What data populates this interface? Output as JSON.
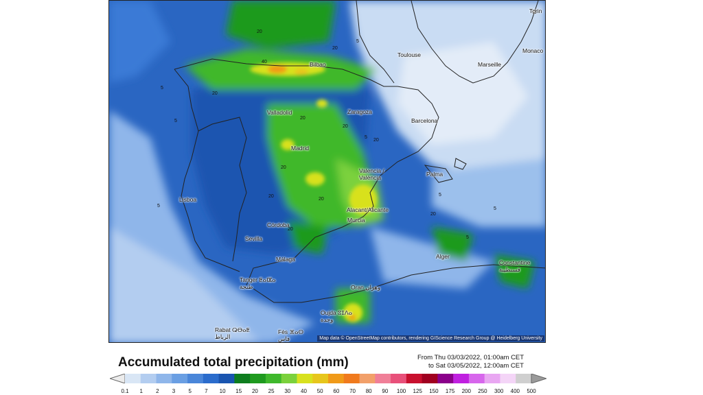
{
  "cities": {
    "torino": "Torin",
    "monaco": "Monaco",
    "toulouse": "Toulouse",
    "marseille": "Marseille",
    "bilbao": "Bilbao",
    "valladolid": "Valladolid",
    "zaragoza": "Zaragoza",
    "barcelona": "Barcelona",
    "madrid": "Madrid",
    "valencia": "Valencia /\nValència",
    "palma": "Palma",
    "lisboa": "Lisboa",
    "alacant": "Alacant/Alicante",
    "murcia": "Murcia",
    "cordoba": "Córdoba",
    "sevilla": "Sevilla",
    "malaga": "Málaga",
    "alger": "Alger",
    "constantine": "Constantine\nقسنطينة",
    "tanger": "Tanger ⵟⴰⵏⴵⴰ\nطنجة",
    "oran": "Oran وهران",
    "oujda": "Oujda ⵓⵊⴷⴰ\nوجدة",
    "rabat": "Rabat ⵕⴱⴰⵟ\nالرباط",
    "fes": "Fès ⴼⴰⵙ\nفاس"
  },
  "contour_labels": [
    "20",
    "40",
    "5",
    "20",
    "20",
    "20",
    "5",
    "5",
    "20",
    "5",
    "20",
    "20",
    "20",
    "5",
    "5",
    "5",
    "20",
    "5",
    "20",
    "20"
  ],
  "credit": "Map data © OpenStreetMap contributors, rendering GIScience Research Group @ Heidelberg University",
  "title": "Accumulated total precipitation (mm)",
  "period": {
    "from": "From Thu 03/03/2022, 01:00am CET",
    "to": "to Sat 03/05/2022, 12:00am CET"
  },
  "legend": {
    "ticks": [
      "0.1",
      "1",
      "2",
      "3",
      "5",
      "7",
      "10",
      "15",
      "20",
      "25",
      "30",
      "40",
      "50",
      "60",
      "70",
      "80",
      "90",
      "100",
      "125",
      "150",
      "175",
      "200",
      "250",
      "300",
      "400",
      "500"
    ],
    "colors": [
      "#d9e6f5",
      "#b3cdf0",
      "#8fb6ea",
      "#6a9fe3",
      "#4a86d9",
      "#2b6ccc",
      "#1a55b0",
      "#0e7d1f",
      "#1f9a1f",
      "#3fb82c",
      "#7bd13c",
      "#d8e11f",
      "#e7c61c",
      "#f09a19",
      "#f07a1d",
      "#f2a06a",
      "#f07f98",
      "#e8507a",
      "#c8102e",
      "#a00020",
      "#8a008a",
      "#c020e0",
      "#d766ec",
      "#e9a7f2",
      "#f4d5f7",
      "#cfcfcf"
    ],
    "low_color": "#ececec",
    "high_color": "#9a9a9a"
  }
}
